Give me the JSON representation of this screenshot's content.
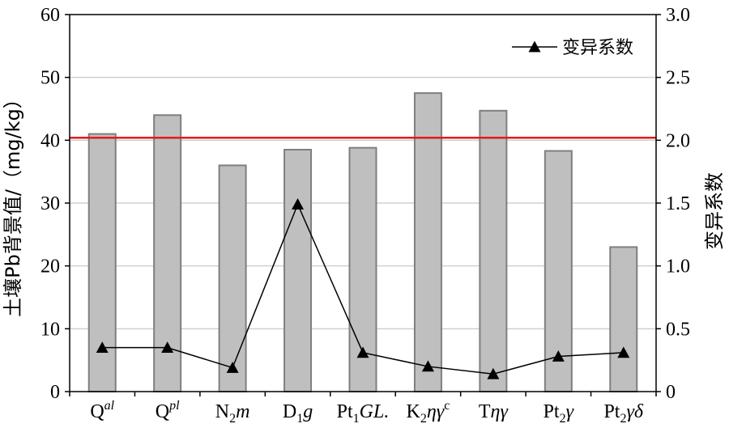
{
  "chart_data": {
    "type": "bar",
    "categories": [
      "Qal",
      "Qpl",
      "N2m",
      "D1g",
      "Pt1GL.",
      "K2ηγc",
      "Tηγ",
      "Pt2γ",
      "Pt2γδ"
    ],
    "category_labels": [
      [
        {
          "t": "Q",
          "s": "n"
        },
        {
          "t": "al",
          "s": "sup-i"
        }
      ],
      [
        {
          "t": "Q",
          "s": "n"
        },
        {
          "t": "pl",
          "s": "sup-i"
        }
      ],
      [
        {
          "t": "N",
          "s": "n"
        },
        {
          "t": "2",
          "s": "sub"
        },
        {
          "t": "m",
          "s": "i"
        }
      ],
      [
        {
          "t": "D",
          "s": "n"
        },
        {
          "t": "1",
          "s": "sub"
        },
        {
          "t": "g",
          "s": "i"
        }
      ],
      [
        {
          "t": "Pt",
          "s": "n"
        },
        {
          "t": "1",
          "s": "sub"
        },
        {
          "t": "GL.",
          "s": "i"
        }
      ],
      [
        {
          "t": "K",
          "s": "n"
        },
        {
          "t": "2",
          "s": "sub"
        },
        {
          "t": "ηγ",
          "s": "i"
        },
        {
          "t": "c",
          "s": "sup"
        }
      ],
      [
        {
          "t": "T",
          "s": "n"
        },
        {
          "t": "ηγ",
          "s": "i"
        }
      ],
      [
        {
          "t": "Pt",
          "s": "n"
        },
        {
          "t": "2",
          "s": "sub"
        },
        {
          "t": "γ",
          "s": "i"
        }
      ],
      [
        {
          "t": "Pt",
          "s": "n"
        },
        {
          "t": "2",
          "s": "sub"
        },
        {
          "t": "γδ",
          "s": "i"
        }
      ]
    ],
    "bar_values": [
      41,
      44,
      36,
      38.5,
      38.8,
      47.5,
      44.7,
      38.3,
      23
    ],
    "line_series": {
      "name": "变异系数",
      "values": [
        0.35,
        0.35,
        0.19,
        1.49,
        0.31,
        0.2,
        0.14,
        0.28,
        0.31
      ]
    },
    "reference_line": {
      "value": 40.4,
      "color": "#e31a1c"
    },
    "ylabel": "土壤Pb背景值/（mg/kg）",
    "y2label": "变异系数",
    "ylim": [
      0,
      60
    ],
    "y2lim": [
      0,
      3.0
    ],
    "yticks": [
      "0",
      "10",
      "20",
      "30",
      "40",
      "50",
      "60"
    ],
    "y2ticks": [
      "0",
      "0.5",
      "1.0",
      "1.5",
      "2.0",
      "2.5",
      "3.0"
    ],
    "grid": true,
    "legend": {
      "position": "top-right",
      "label": "变异系数"
    },
    "colors": {
      "bar_fill": "#bfbfbf",
      "bar_stroke": "#7f7f7f",
      "grid": "#d0d0d0",
      "line": "#000000",
      "reference": "#e31a1c"
    }
  }
}
